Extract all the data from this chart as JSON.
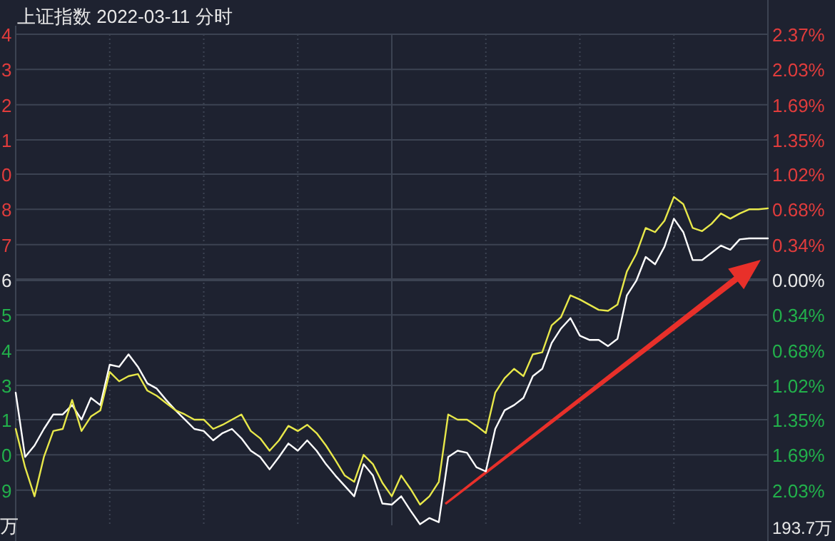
{
  "chart_data": {
    "type": "line",
    "title": "上证指数  2022-03-11 分时",
    "grid": true,
    "categories": [
      null,
      null,
      null,
      null,
      null,
      null,
      null,
      null,
      null,
      null,
      null,
      null,
      null,
      null,
      null,
      null,
      null,
      null,
      null,
      null,
      null,
      null,
      null,
      null,
      null,
      null,
      null,
      null,
      null,
      null,
      null,
      null,
      null,
      null,
      null,
      null,
      null,
      null,
      null,
      null,
      null,
      null,
      null,
      null,
      null,
      null,
      null,
      null,
      null,
      null,
      null,
      null,
      null,
      null,
      null,
      null,
      null,
      null,
      null,
      null,
      null,
      null,
      null,
      null,
      null,
      null,
      null,
      null,
      null,
      null,
      null,
      null,
      null,
      null,
      null,
      null,
      null,
      null,
      null,
      null,
      null
    ],
    "series": [
      {
        "color": "#ffffff",
        "values": [
          -1.09,
          -1.71,
          -1.6,
          -1.44,
          -1.3,
          -1.3,
          -1.21,
          -1.35,
          -1.14,
          -1.21,
          -0.82,
          -0.84,
          -0.72,
          -0.84,
          -1.0,
          -1.05,
          -1.16,
          -1.26,
          -1.35,
          -1.44,
          -1.46,
          -1.55,
          -1.48,
          -1.44,
          -1.53,
          -1.65,
          -1.71,
          -1.83,
          -1.71,
          -1.58,
          -1.65,
          -1.55,
          -1.65,
          -1.78,
          -1.89,
          -1.99,
          -2.09,
          -1.78,
          -1.89,
          -2.16,
          -2.17,
          -2.09,
          -2.23,
          -2.36,
          -2.3,
          -2.34,
          -1.71,
          -1.65,
          -1.67,
          -1.81,
          -1.85,
          -1.44,
          -1.26,
          -1.21,
          -1.14,
          -0.93,
          -0.86,
          -0.61,
          -0.47,
          -0.37,
          -0.54,
          -0.58,
          -0.58,
          -0.64,
          -0.57,
          -0.15,
          -0.01,
          0.22,
          0.15,
          0.32,
          0.59,
          0.46,
          0.19,
          0.19,
          0.26,
          0.33,
          0.29,
          0.39,
          0.4,
          0.4,
          0.4
        ]
      },
      {
        "color": "#e8e84a",
        "values": [
          -1.44,
          -1.81,
          -2.09,
          -1.71,
          -1.46,
          -1.44,
          -1.16,
          -1.46,
          -1.32,
          -1.26,
          -0.89,
          -0.98,
          -0.93,
          -0.91,
          -1.07,
          -1.12,
          -1.19,
          -1.26,
          -1.3,
          -1.35,
          -1.35,
          -1.44,
          -1.4,
          -1.35,
          -1.3,
          -1.46,
          -1.53,
          -1.65,
          -1.55,
          -1.41,
          -1.46,
          -1.4,
          -1.48,
          -1.6,
          -1.74,
          -1.89,
          -1.95,
          -1.69,
          -1.78,
          -1.96,
          -2.09,
          -1.89,
          -2.02,
          -2.17,
          -2.09,
          -1.95,
          -1.3,
          -1.35,
          -1.35,
          -1.41,
          -1.48,
          -1.09,
          -0.95,
          -0.86,
          -0.93,
          -0.72,
          -0.7,
          -0.44,
          -0.36,
          -0.15,
          -0.19,
          -0.24,
          -0.29,
          -0.3,
          -0.24,
          0.08,
          0.25,
          0.5,
          0.46,
          0.57,
          0.8,
          0.73,
          0.5,
          0.47,
          0.54,
          0.64,
          0.59,
          0.64,
          0.68,
          0.68,
          0.69
        ]
      }
    ],
    "ylim": [
      -2.37,
      2.37
    ],
    "yticks": [
      {
        "value": 2.37,
        "label": "2.37%"
      },
      {
        "value": 2.03,
        "label": "2.03%"
      },
      {
        "value": 1.69,
        "label": "1.69%"
      },
      {
        "value": 1.35,
        "label": "1.35%"
      },
      {
        "value": 1.02,
        "label": "1.02%"
      },
      {
        "value": 0.68,
        "label": "0.68%"
      },
      {
        "value": 0.34,
        "label": "0.34%"
      },
      {
        "value": 0,
        "label": "0.00%"
      },
      {
        "value": -0.34,
        "label": "0.34%"
      },
      {
        "value": -0.68,
        "label": "0.68%"
      },
      {
        "value": -1.02,
        "label": "1.02%"
      },
      {
        "value": -1.35,
        "label": "1.35%"
      },
      {
        "value": -1.69,
        "label": "1.69%"
      },
      {
        "value": -2.03,
        "label": "2.03%"
      }
    ],
    "annotations": [
      "4",
      "3",
      "2",
      "1",
      "0",
      "8",
      "7",
      "6",
      "5",
      "4",
      "3",
      "1",
      "0",
      "9",
      "万",
      "193.7万"
    ]
  }
}
